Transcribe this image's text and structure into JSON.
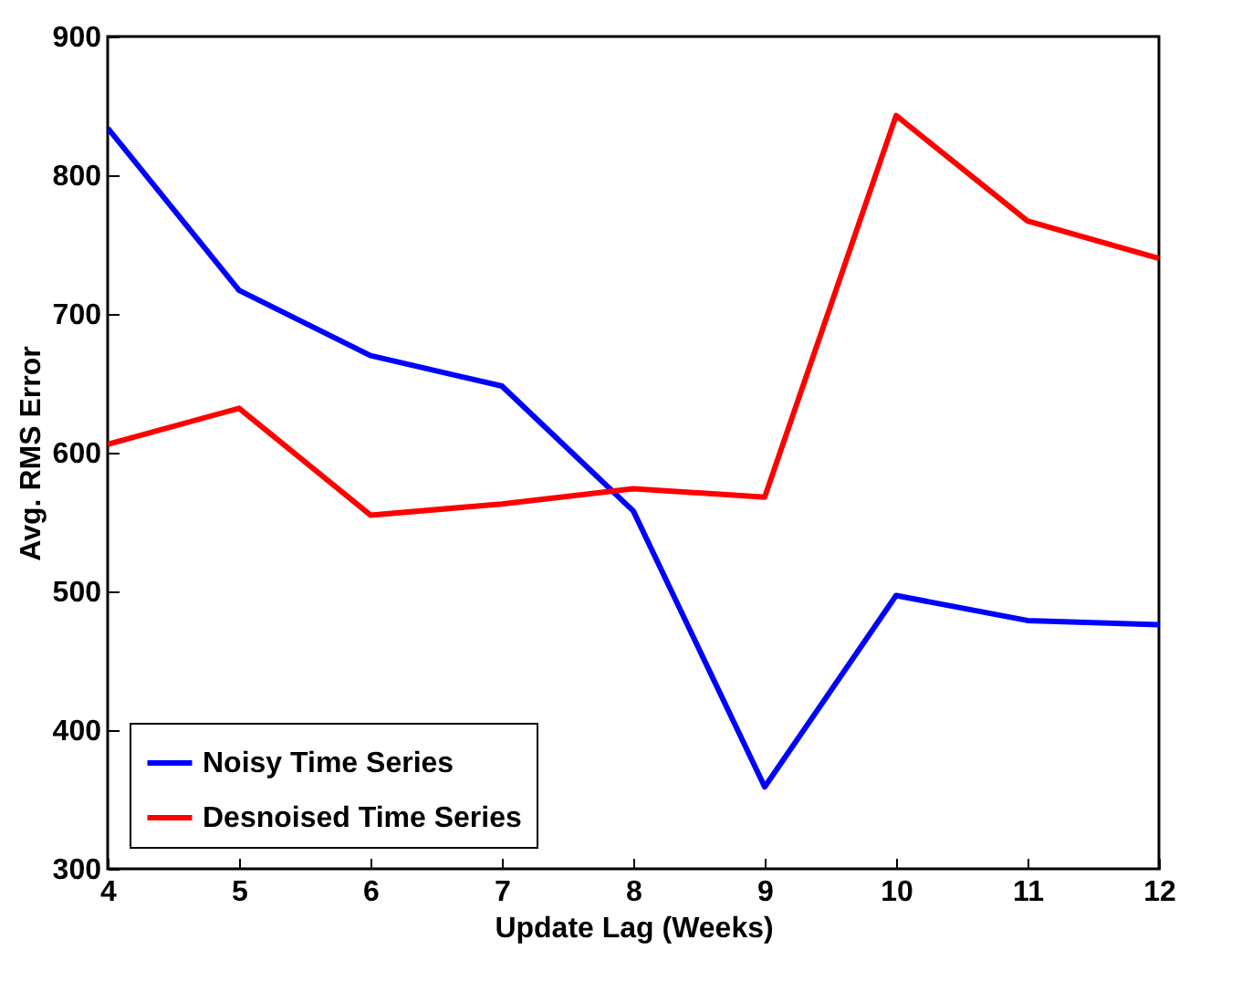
{
  "chart_data": {
    "type": "line",
    "xlabel": "Update Lag (Weeks)",
    "ylabel": "Avg. RMS Error",
    "x": [
      4,
      5,
      6,
      7,
      8,
      9,
      10,
      11,
      12
    ],
    "series": [
      {
        "name": "Noisy Time Series",
        "color": "#0000ff",
        "values": [
          834,
          717,
          670,
          648,
          558,
          359,
          497,
          479,
          476
        ]
      },
      {
        "name": "Desnoised Time Series",
        "color": "#ff0000",
        "values": [
          606,
          632,
          555,
          563,
          574,
          568,
          843,
          767,
          740
        ]
      }
    ],
    "xlim": [
      4,
      12
    ],
    "xticks": [
      4,
      5,
      6,
      7,
      8,
      9,
      10,
      11,
      12
    ],
    "ylim": [
      300,
      900
    ],
    "yticks": [
      300,
      400,
      500,
      600,
      700,
      800,
      900
    ],
    "grid": false,
    "legend": "bottom left",
    "line_style": "solid"
  }
}
